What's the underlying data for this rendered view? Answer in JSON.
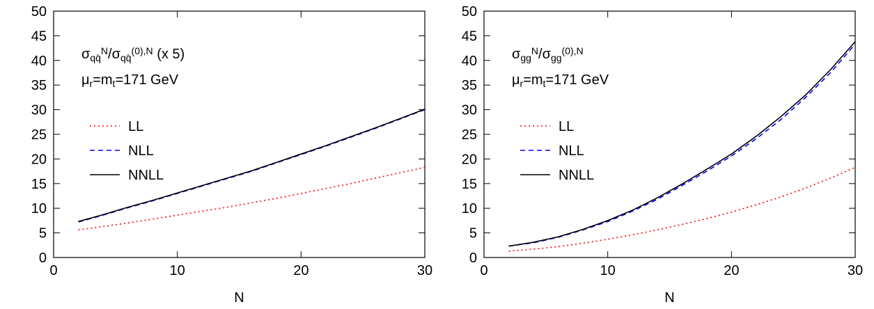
{
  "chart_data": [
    {
      "type": "line",
      "annotations": [
        [
          {
            "text": "σ"
          },
          {
            "text": "qq̄",
            "pos": "sub"
          },
          {
            "text": "N",
            "pos": "sup"
          },
          {
            "text": "/σ"
          },
          {
            "text": "qq̄",
            "pos": "sub"
          },
          {
            "text": "(0),N",
            "pos": "sup"
          },
          {
            "text": " (x 5)"
          }
        ],
        [
          {
            "text": "μ"
          },
          {
            "text": "r",
            "pos": "sub"
          },
          {
            "text": "=m"
          },
          {
            "text": "t",
            "pos": "sub"
          },
          {
            "text": "=171 GeV"
          }
        ]
      ],
      "x_label": "N",
      "x": [
        2,
        4,
        6,
        8,
        10,
        12,
        14,
        16,
        18,
        20,
        22,
        24,
        26,
        28,
        30
      ],
      "series": [
        {
          "name": "LL",
          "color": "#ff0000",
          "style": "dotted",
          "values": [
            5.6,
            6.3,
            7.0,
            7.8,
            8.6,
            9.4,
            10.2,
            11.1,
            12.0,
            13.0,
            14.0,
            15.0,
            16.1,
            17.2,
            18.3
          ]
        },
        {
          "name": "NLL",
          "color": "#0000ff",
          "style": "dashed",
          "values": [
            7.2,
            8.6,
            10.1,
            11.5,
            13.0,
            14.5,
            16.0,
            17.5,
            19.2,
            20.9,
            22.6,
            24.4,
            26.2,
            28.1,
            30.0
          ]
        },
        {
          "name": "NNLL",
          "color": "#000000",
          "style": "solid",
          "values": [
            7.3,
            8.7,
            10.2,
            11.6,
            13.1,
            14.6,
            16.1,
            17.6,
            19.3,
            21.0,
            22.7,
            24.5,
            26.3,
            28.2,
            30.1
          ]
        }
      ],
      "xlim": [
        0,
        30
      ],
      "xticks": [
        0,
        10,
        20,
        30
      ],
      "ylim": [
        0,
        50
      ],
      "yticks": [
        0,
        5,
        10,
        15,
        20,
        25,
        30,
        35,
        40,
        45,
        50
      ],
      "legend": "center left"
    },
    {
      "type": "line",
      "annotations": [
        [
          {
            "text": "σ"
          },
          {
            "text": "gg",
            "pos": "sub"
          },
          {
            "text": "N",
            "pos": "sup"
          },
          {
            "text": "/σ"
          },
          {
            "text": "gg",
            "pos": "sub"
          },
          {
            "text": "(0),N",
            "pos": "sup"
          }
        ],
        [
          {
            "text": "μ"
          },
          {
            "text": "r",
            "pos": "sub"
          },
          {
            "text": "=m"
          },
          {
            "text": "t",
            "pos": "sub"
          },
          {
            "text": "=171 GeV"
          }
        ]
      ],
      "x_label": "N",
      "x": [
        2,
        4,
        6,
        8,
        10,
        12,
        14,
        16,
        18,
        20,
        22,
        24,
        26,
        28,
        30
      ],
      "series": [
        {
          "name": "LL",
          "color": "#ff0000",
          "style": "dotted",
          "values": [
            1.3,
            1.7,
            2.2,
            2.9,
            3.7,
            4.6,
            5.6,
            6.7,
            7.9,
            9.2,
            10.7,
            12.3,
            14.1,
            16.1,
            18.3
          ]
        },
        {
          "name": "NLL",
          "color": "#0000ff",
          "style": "dashed",
          "values": [
            2.3,
            3.0,
            4.1,
            5.6,
            7.3,
            9.4,
            11.8,
            14.6,
            17.5,
            20.6,
            24.1,
            28.0,
            32.5,
            37.5,
            43.3
          ]
        },
        {
          "name": "NNLL",
          "color": "#000000",
          "style": "solid",
          "values": [
            2.3,
            3.1,
            4.2,
            5.7,
            7.5,
            9.6,
            12.1,
            14.9,
            17.9,
            21.0,
            24.6,
            28.6,
            33.0,
            38.1,
            43.8
          ]
        }
      ],
      "xlim": [
        0,
        30
      ],
      "xticks": [
        0,
        10,
        20,
        30
      ],
      "ylim": [
        0,
        50
      ],
      "yticks": [
        0,
        5,
        10,
        15,
        20,
        25,
        30,
        35,
        40,
        45,
        50
      ],
      "legend": "center left"
    }
  ]
}
